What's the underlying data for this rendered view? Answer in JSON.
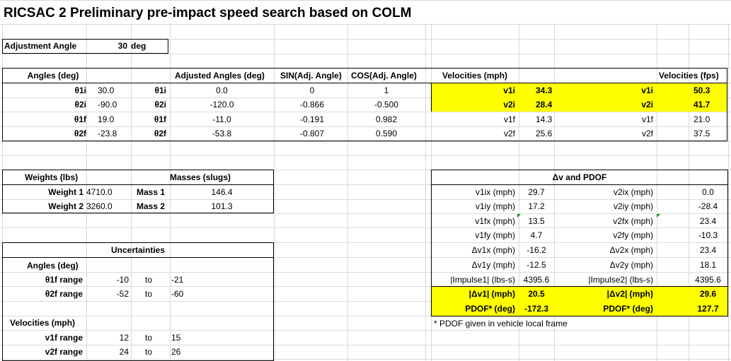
{
  "title": "RICSAC 2 Preliminary pre-impact speed search based on COLM",
  "adjustment": {
    "label": "Adjustment Angle",
    "value": "30",
    "unit": "deg"
  },
  "angles_table": {
    "headers": {
      "angles": "Angles (deg)",
      "adjusted": "Adjusted Angles (deg)",
      "sin": "SIN(Adj. Angle)",
      "cos": "COS(Adj. Angle)"
    },
    "rows": [
      {
        "label": "θ1i",
        "value": "30.0",
        "adj_label": "θ1i",
        "adj": "0.0",
        "sin": "0",
        "cos": "1"
      },
      {
        "label": "θ2i",
        "value": "-90.0",
        "adj_label": "θ2i",
        "adj": "-120.0",
        "sin": "-0.866",
        "cos": "-0.500"
      },
      {
        "label": "θ1f",
        "value": "19.0",
        "adj_label": "θ1f",
        "adj": "-11.0",
        "sin": "-0.191",
        "cos": "0.982"
      },
      {
        "label": "θ2f",
        "value": "-23.8",
        "adj_label": "θ2f",
        "adj": "-53.8",
        "sin": "-0.807",
        "cos": "0.590"
      }
    ]
  },
  "velocities_table": {
    "headers": {
      "mph": "Velocities (mph)",
      "fps": "Velocities (fps)"
    },
    "rows": [
      {
        "mph_label": "v1i",
        "mph": "34.3",
        "fps_label": "v1i",
        "fps": "50.3"
      },
      {
        "mph_label": "v2i",
        "mph": "28.4",
        "fps_label": "v2i",
        "fps": "41.7"
      },
      {
        "mph_label": "v1f",
        "mph": "14.3",
        "fps_label": "v1f",
        "fps": "21.0"
      },
      {
        "mph_label": "v2f",
        "mph": "25.6",
        "fps_label": "v2f",
        "fps": "37.5"
      }
    ]
  },
  "weights_table": {
    "headers": {
      "weights": "Weights (lbs)",
      "masses": "Masses (slugs)"
    },
    "rows": [
      {
        "w_label": "Weight 1",
        "w": "4710.0",
        "m_label": "Mass 1",
        "m": "146.4"
      },
      {
        "w_label": "Weight 2",
        "w": "3260.0",
        "m_label": "Mass 2",
        "m": "101.3"
      }
    ]
  },
  "uncertainties": {
    "header": "Uncertainties",
    "angles_label": "Angles (deg)",
    "velocities_label": "Velocities (mph)",
    "rows": [
      {
        "label": "θ1f range",
        "from": "-10",
        "to_word": "to",
        "to": "-21"
      },
      {
        "label": "θ2f range",
        "from": "-52",
        "to_word": "to",
        "to": "-60"
      },
      {
        "label": "v1f range",
        "from": "12",
        "to_word": "to",
        "to": "15"
      },
      {
        "label": "v2f range",
        "from": "24",
        "to_word": "to",
        "to": "26"
      }
    ]
  },
  "pdof_table": {
    "header": "Δv and PDOF",
    "rows": [
      {
        "l1": "v1ix (mph)",
        "v1": "29.7",
        "l2": "v2ix (mph)",
        "v2": "0.0"
      },
      {
        "l1": "v1iy (mph)",
        "v1": "17.2",
        "l2": "v2iy (mph)",
        "v2": "-28.4"
      },
      {
        "l1": "v1fx (mph)",
        "v1": "13.5",
        "l2": "v2fx (mph)",
        "v2": "23.4"
      },
      {
        "l1": "v1fy (mph)",
        "v1": "4.7",
        "l2": "v2fy (mph)",
        "v2": "-10.3"
      },
      {
        "l1": "Δv1x (mph)",
        "v1": "-16.2",
        "l2": "Δv2x (mph)",
        "v2": "23.4"
      },
      {
        "l1": "Δv1y (mph)",
        "v1": "-12.5",
        "l2": "Δv2y (mph)",
        "v2": "18.1"
      },
      {
        "l1": "|Impulse1| (lbs-s)",
        "v1": "4395.6",
        "l2": "|Impulse2| (lbs-s)",
        "v2": "4395.6"
      },
      {
        "l1": "|Δv1| (mph)",
        "v1": "20.5",
        "l2": "|Δv2| (mph)",
        "v2": "29.6"
      },
      {
        "l1": "PDOF* (deg)",
        "v1": "-172.3",
        "l2": "PDOF* (deg)",
        "v2": "127.7"
      }
    ],
    "footnote": "* PDOF given in vehicle local frame"
  },
  "colors": {
    "highlight": "#ffff00",
    "gridline": "#d9d9d9",
    "comment_marker": "#1a8c1a"
  }
}
